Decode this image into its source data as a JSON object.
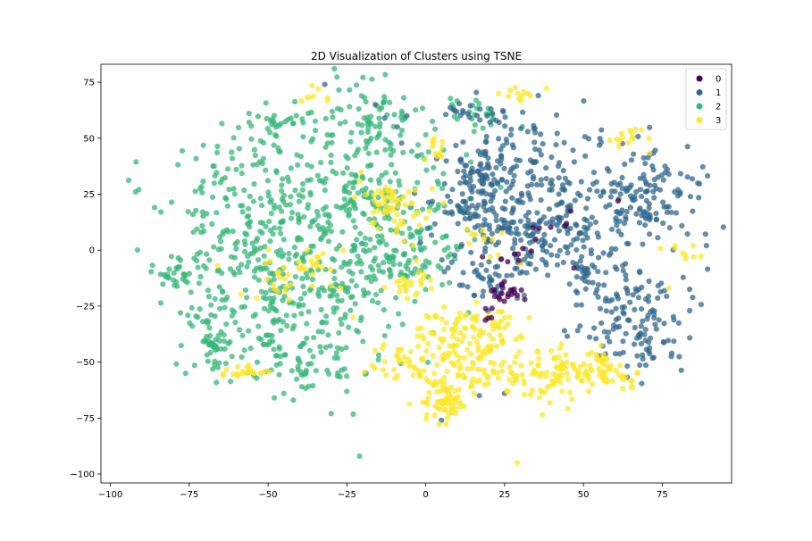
{
  "chart_data": {
    "type": "scatter",
    "title": "2D Visualization of Clusters using TSNE",
    "xlabel": "",
    "ylabel": "",
    "xlim": [
      -103,
      97
    ],
    "ylim": [
      -104,
      83
    ],
    "x_ticks": [
      -100,
      -75,
      -50,
      -25,
      0,
      25,
      50,
      75
    ],
    "x_tick_labels": [
      "−100",
      "−75",
      "−50",
      "−25",
      "0",
      "25",
      "50",
      "75"
    ],
    "y_ticks": [
      75,
      50,
      25,
      0,
      -25,
      -50,
      -75,
      -100
    ],
    "y_tick_labels": [
      "75",
      "50",
      "25",
      "0",
      "−25",
      "−50",
      "−75",
      "−100"
    ],
    "grid": false,
    "legend_position": "top-right",
    "series": [
      {
        "name": "0",
        "color": "#440154",
        "clusters": [
          {
            "center": [
              25,
              -19
            ],
            "spread": [
              3,
              2.5
            ],
            "n": 22
          },
          {
            "center": [
              30,
              -3
            ],
            "spread": [
              2,
              2
            ],
            "n": 6
          },
          {
            "center": [
              40,
              12
            ],
            "spread": [
              4,
              3
            ],
            "n": 6
          },
          {
            "center": [
              20,
              -30
            ],
            "spread": [
              2,
              2
            ],
            "n": 4
          }
        ],
        "points": [
          [
            18,
            -3
          ],
          [
            24,
            -4
          ],
          [
            34,
            10
          ],
          [
            47,
            -8
          ],
          [
            61,
            22
          ],
          [
            21,
            -26
          ]
        ]
      },
      {
        "name": "1",
        "color": "#31688e",
        "clusters": [
          {
            "center": [
              30,
              35
            ],
            "spread": [
              12,
              12
            ],
            "n": 170
          },
          {
            "center": [
              68,
              25
            ],
            "spread": [
              10,
              12
            ],
            "n": 150
          },
          {
            "center": [
              40,
              5
            ],
            "spread": [
              12,
              10
            ],
            "n": 140
          },
          {
            "center": [
              65,
              -25
            ],
            "spread": [
              10,
              10
            ],
            "n": 120
          },
          {
            "center": [
              15,
              15
            ],
            "spread": [
              7,
              8
            ],
            "n": 70
          },
          {
            "center": [
              20,
              -10
            ],
            "spread": [
              8,
              6
            ],
            "n": 50
          },
          {
            "center": [
              15,
              33
            ],
            "spread": [
              3,
              3
            ],
            "n": 20
          },
          {
            "center": [
              50,
              -11
            ],
            "spread": [
              2,
              2
            ],
            "n": 15
          },
          {
            "center": [
              24,
              11
            ],
            "spread": [
              2,
              2
            ],
            "n": 10
          },
          {
            "center": [
              70,
              -45
            ],
            "spread": [
              6,
              6
            ],
            "n": 30
          },
          {
            "center": [
              22,
              60
            ],
            "spread": [
              5,
              3
            ],
            "n": 12
          },
          {
            "center": [
              10,
              63
            ],
            "spread": [
              3,
              2
            ],
            "n": 10
          }
        ],
        "points": [
          [
            89,
            2
          ],
          [
            -32,
            74
          ],
          [
            5,
            -76
          ],
          [
            25,
            -64
          ],
          [
            17,
            -65
          ],
          [
            44,
            -36
          ],
          [
            -16,
            65
          ],
          [
            -13,
            59
          ],
          [
            -9,
            55
          ],
          [
            -6,
            60
          ]
        ]
      },
      {
        "name": "2",
        "color": "#35b779",
        "clusters": [
          {
            "center": [
              -55,
              15
            ],
            "spread": [
              15,
              18
            ],
            "n": 220
          },
          {
            "center": [
              -20,
              20
            ],
            "spread": [
              15,
              15
            ],
            "n": 200
          },
          {
            "center": [
              -35,
              -20
            ],
            "spread": [
              15,
              15
            ],
            "n": 200
          },
          {
            "center": [
              -15,
              55
            ],
            "spread": [
              10,
              10
            ],
            "n": 90
          },
          {
            "center": [
              -65,
              -35
            ],
            "spread": [
              8,
              12
            ],
            "n": 70
          },
          {
            "center": [
              -5,
              -5
            ],
            "spread": [
              8,
              10
            ],
            "n": 70
          },
          {
            "center": [
              -80,
              -10
            ],
            "spread": [
              5,
              4
            ],
            "n": 30
          },
          {
            "center": [
              -68,
              -42
            ],
            "spread": [
              1.5,
              1.2
            ],
            "n": 25
          },
          {
            "center": [
              -40,
              -50
            ],
            "spread": [
              10,
              8
            ],
            "n": 60
          },
          {
            "center": [
              15,
              62
            ],
            "spread": [
              5,
              5
            ],
            "n": 25
          },
          {
            "center": [
              -45,
              55
            ],
            "spread": [
              7,
              4
            ],
            "n": 35
          }
        ],
        "points": [
          [
            -92,
            26
          ],
          [
            -91,
            27
          ],
          [
            -45,
            -64
          ],
          [
            -42,
            -67
          ],
          [
            -48,
            -66
          ],
          [
            -30,
            -73
          ],
          [
            -21,
            -92
          ],
          [
            -84,
            17
          ],
          [
            -86,
            19
          ],
          [
            -83,
            -11
          ]
        ]
      },
      {
        "name": "3",
        "color": "#fde725",
        "clusters": [
          {
            "center": [
              -10,
              20
            ],
            "spread": [
              5,
              6
            ],
            "n": 60
          },
          {
            "center": [
              10,
              -50
            ],
            "spread": [
              10,
              8
            ],
            "n": 110
          },
          {
            "center": [
              40,
              -55
            ],
            "spread": [
              10,
              6
            ],
            "n": 110
          },
          {
            "center": [
              7,
              -70
            ],
            "spread": [
              4,
              4
            ],
            "n": 55
          },
          {
            "center": [
              -5,
              -15
            ],
            "spread": [
              3,
              3
            ],
            "n": 25
          },
          {
            "center": [
              20,
              -35
            ],
            "spread": [
              8,
              5
            ],
            "n": 45
          },
          {
            "center": [
              -45,
              -10
            ],
            "spread": [
              5,
              5
            ],
            "n": 25
          },
          {
            "center": [
              -55,
              -55
            ],
            "spread": [
              4,
              2
            ],
            "n": 20
          },
          {
            "center": [
              -10,
              -52
            ],
            "spread": [
              4,
              4
            ],
            "n": 20
          },
          {
            "center": [
              5,
              -35
            ],
            "spread": [
              4,
              4
            ],
            "n": 25
          },
          {
            "center": [
              18,
              4
            ],
            "spread": [
              3,
              3
            ],
            "n": 12
          },
          {
            "center": [
              -35,
              -5
            ],
            "spread": [
              4,
              4
            ],
            "n": 12
          },
          {
            "center": [
              30,
              70
            ],
            "spread": [
              3,
              2
            ],
            "n": 12
          },
          {
            "center": [
              -35,
              70
            ],
            "spread": [
              2,
              2
            ],
            "n": 8
          },
          {
            "center": [
              55,
              -52
            ],
            "spread": [
              4,
              5
            ],
            "n": 30
          },
          {
            "center": [
              65,
              50
            ],
            "spread": [
              4,
              3
            ],
            "n": 15
          },
          {
            "center": [
              80,
              0
            ],
            "spread": [
              3,
              3
            ],
            "n": 8
          },
          {
            "center": [
              3,
              45
            ],
            "spread": [
              3,
              3
            ],
            "n": 12
          },
          {
            "center": [
              62,
              -58
            ],
            "spread": [
              4,
              2
            ],
            "n": 15
          }
        ],
        "points": [
          [
            29,
            -95
          ],
          [
            -27,
            -17
          ],
          [
            -30,
            -16
          ],
          [
            -36,
            -16
          ],
          [
            -23,
            -30
          ],
          [
            -57,
            -55
          ],
          [
            -51,
            -54
          ],
          [
            85,
            -3
          ],
          [
            77,
            -17
          ],
          [
            -66,
            -7
          ],
          [
            30,
            -6
          ],
          [
            -4,
            2
          ],
          [
            -7,
            4
          ]
        ]
      }
    ]
  }
}
